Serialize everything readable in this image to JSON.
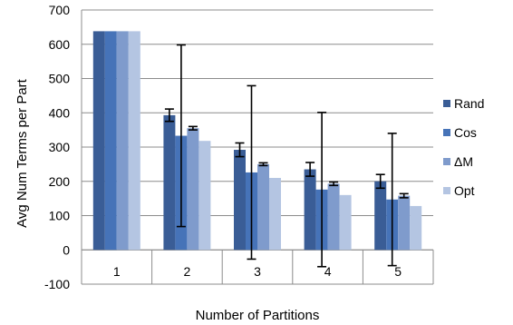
{
  "chart_data": {
    "type": "bar",
    "xlabel": "Number of Partitions",
    "ylabel": "Avg Num Terms per Part",
    "ylim": [
      -100,
      700
    ],
    "yticks": [
      -100,
      0,
      100,
      200,
      300,
      400,
      500,
      600,
      700
    ],
    "categories": [
      "1",
      "2",
      "3",
      "4",
      "5"
    ],
    "grid": "horizontal",
    "legend_position": "right",
    "series": [
      {
        "name": "Rand",
        "color": "#3a5d96",
        "values": [
          638,
          393,
          292,
          235,
          200
        ],
        "err": [
          0,
          18,
          20,
          20,
          20
        ]
      },
      {
        "name": "Cos",
        "color": "#4673b8",
        "values": [
          638,
          333,
          226,
          176,
          147
        ],
        "err": [
          0,
          265,
          253,
          225,
          193
        ]
      },
      {
        "name": "ΔM",
        "color": "#7f9bcc",
        "values": [
          638,
          355,
          250,
          193,
          158
        ],
        "err": [
          0,
          5,
          4,
          5,
          6
        ]
      },
      {
        "name": "Opt",
        "color": "#b4c5e2",
        "values": [
          638,
          318,
          210,
          160,
          128
        ],
        "err": [
          0,
          0,
          0,
          0,
          0
        ]
      }
    ]
  }
}
